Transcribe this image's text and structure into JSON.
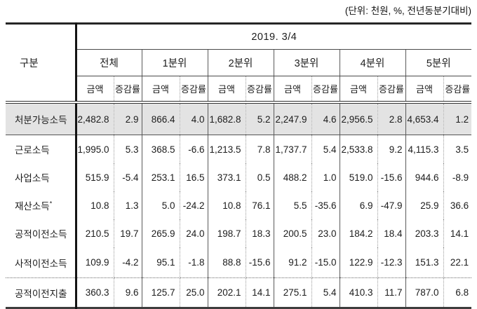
{
  "note": "(단위: 천원, %, 전년동분기대비)",
  "table": {
    "corner_label": "구분",
    "period": "2019. 3/4",
    "groups": [
      "전체",
      "1분위",
      "2분위",
      "3분위",
      "4분위",
      "5분위"
    ],
    "sub_amount": "금액",
    "sub_rate": "증감률",
    "rows": [
      {
        "label": "처분가능소득",
        "mark": "",
        "highlight": true,
        "values": [
          "2,482.8",
          "2.9",
          "866.4",
          "4.0",
          "1,682.8",
          "5.2",
          "2,247.9",
          "4.6",
          "2,956.5",
          "2.8",
          "4,653.4",
          "1.2"
        ]
      },
      {
        "label": "근로소득",
        "mark": "",
        "highlight": false,
        "values": [
          "1,995.0",
          "5.3",
          "368.5",
          "-6.6",
          "1,213.5",
          "7.8",
          "1,737.7",
          "5.4",
          "2,533.8",
          "9.2",
          "4,115.3",
          "3.5"
        ]
      },
      {
        "label": "사업소득",
        "mark": "",
        "highlight": false,
        "values": [
          "515.9",
          "-5.4",
          "253.1",
          "16.5",
          "373.1",
          "0.5",
          "488.2",
          "1.0",
          "519.0",
          "-15.6",
          "944.6",
          "-8.9"
        ]
      },
      {
        "label": "재산소득",
        "mark": "*",
        "highlight": false,
        "values": [
          "10.8",
          "1.3",
          "5.0",
          "-24.2",
          "10.8",
          "76.1",
          "5.5",
          "-35.6",
          "6.9",
          "-47.9",
          "25.9",
          "36.6"
        ]
      },
      {
        "label": "공적이전소득",
        "mark": "",
        "highlight": false,
        "values": [
          "210.5",
          "19.7",
          "265.9",
          "24.0",
          "198.7",
          "18.3",
          "200.5",
          "23.0",
          "184.2",
          "18.4",
          "203.3",
          "14.1"
        ]
      },
      {
        "label": "사적이전소득",
        "mark": "",
        "highlight": false,
        "values": [
          "109.9",
          "-4.2",
          "95.1",
          "-1.8",
          "88.8",
          "-15.6",
          "91.2",
          "-15.0",
          "122.9",
          "-12.3",
          "151.3",
          "22.1"
        ]
      },
      {
        "label": "공적이전지출",
        "mark": "",
        "highlight": false,
        "values": [
          "360.3",
          "9.6",
          "125.7",
          "25.0",
          "202.1",
          "14.1",
          "275.1",
          "5.4",
          "410.3",
          "11.7",
          "787.0",
          "6.8"
        ]
      }
    ]
  }
}
